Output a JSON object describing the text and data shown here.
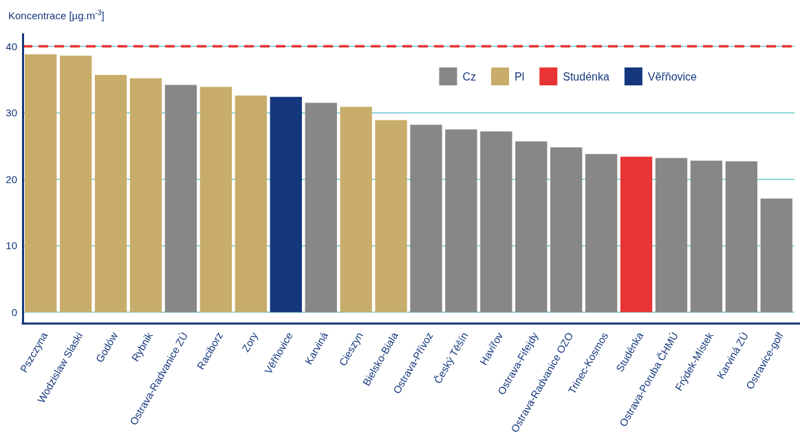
{
  "chart_data": {
    "type": "bar",
    "stacked": true,
    "ylabel": "Koncentrace [µg.m$^{-3}$]",
    "categories": [
      "Pszczyna",
      "Wodzislaw Slaski",
      "Godów",
      "Rybnik",
      "Ostrava-Radvanice ZÚ",
      "Raciborz",
      "Zory",
      "Věřňovice",
      "Karviná",
      "Cieszyn",
      "Bielsko-Biala",
      "Ostrava-Přívoz",
      "Český Těšín",
      "Havířov",
      "Ostrava-Fifejdy",
      "Ostrava-Radvanice OZO",
      "Trinec-Kosmos",
      "Studénka",
      "Ostrava-Poruba ČHMÚ",
      "Frýdek-Místek",
      "Karviná ZÚ",
      "Ostravice-golf"
    ],
    "series": [
      {
        "name": "Cz",
        "color": "#878787",
        "values": [
          null,
          null,
          null,
          null,
          34.2,
          null,
          null,
          null,
          31.5,
          null,
          null,
          28.2,
          27.5,
          27.2,
          25.7,
          24.8,
          23.8,
          null,
          23.2,
          22.8,
          22.7,
          17.1
        ]
      },
      {
        "name": "Pl",
        "color": "#c8ad6a",
        "values": [
          38.8,
          38.6,
          35.7,
          35.2,
          null,
          33.9,
          32.6,
          null,
          null,
          30.9,
          28.9,
          null,
          null,
          null,
          null,
          null,
          null,
          null,
          null,
          null,
          null,
          null
        ]
      },
      {
        "name": "Studénka",
        "color": "#e83434",
        "values": [
          null,
          null,
          null,
          null,
          null,
          null,
          null,
          null,
          null,
          null,
          null,
          null,
          null,
          null,
          null,
          null,
          null,
          23.4,
          null,
          null,
          null,
          null
        ]
      },
      {
        "name": "Věřňovice",
        "color": "#14377d",
        "values": [
          null,
          null,
          null,
          null,
          null,
          null,
          null,
          32.4,
          null,
          null,
          null,
          null,
          null,
          null,
          null,
          null,
          null,
          null,
          null,
          null,
          null,
          null
        ]
      }
    ],
    "ylim": [
      -1.7,
      42
    ],
    "yticks": [
      0,
      10,
      20,
      30,
      40
    ],
    "grid": "y",
    "legend": "top right",
    "ref_lines": [
      {
        "axis": "y",
        "value": 40,
        "color": "#e83434",
        "line_style": "dashed"
      }
    ]
  }
}
